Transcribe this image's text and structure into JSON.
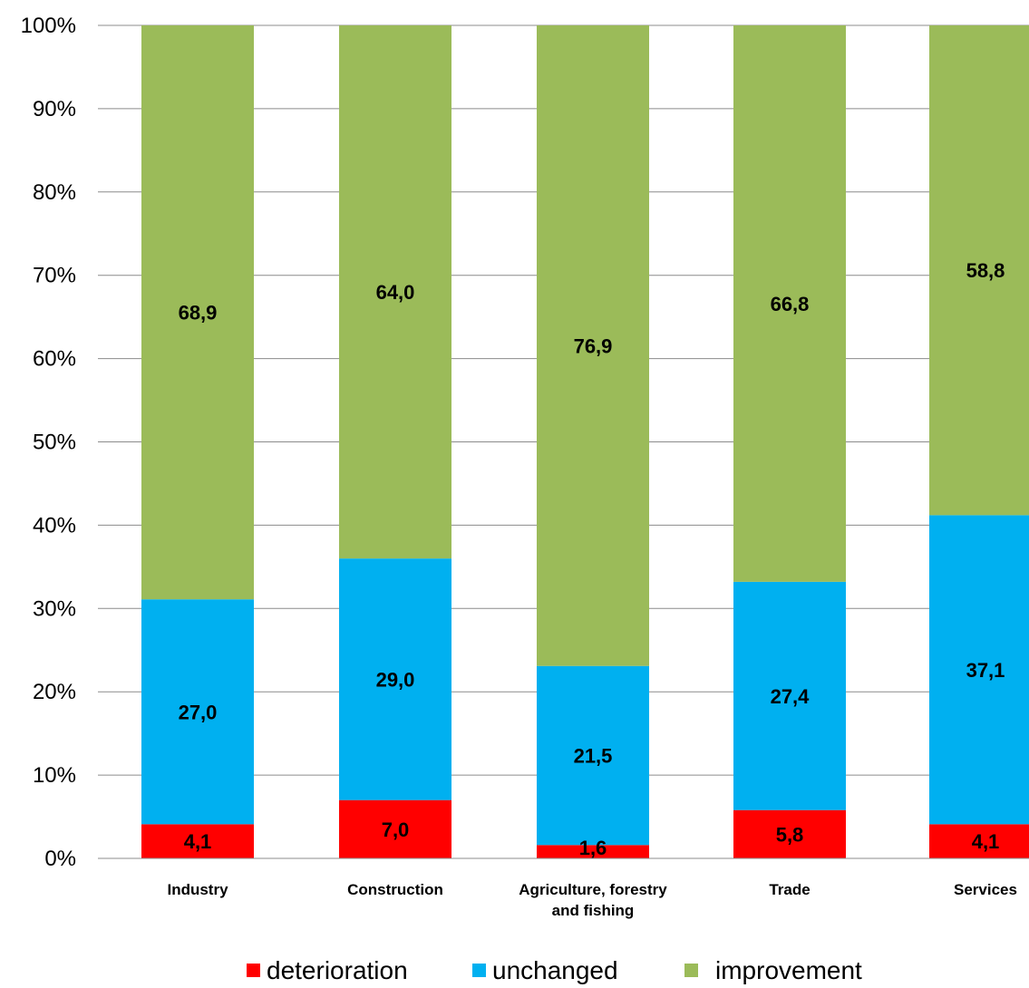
{
  "chart_data": {
    "type": "bar",
    "stacked": true,
    "percent_stacked": true,
    "categories": [
      [
        "Industry"
      ],
      [
        "Construction"
      ],
      [
        "Agriculture, forestry",
        "and fishing"
      ],
      [
        "Trade"
      ],
      [
        "Services"
      ]
    ],
    "series": [
      {
        "name": "deterioration",
        "color": "#ff0000",
        "values": [
          4.1,
          7.0,
          1.6,
          5.8,
          4.1
        ],
        "labels": [
          "4,1",
          "7,0",
          "1,6",
          "5,8",
          "4,1"
        ]
      },
      {
        "name": "unchanged",
        "color": "#00b0f0",
        "values": [
          27.0,
          29.0,
          21.5,
          27.4,
          37.1
        ],
        "labels": [
          "27,0",
          "29,0",
          "21,5",
          "27,4",
          "37,1"
        ]
      },
      {
        "name": "improvement",
        "color": "#9bbb59",
        "values": [
          68.9,
          64.0,
          76.9,
          66.8,
          58.8
        ],
        "labels": [
          "68,9",
          "64,0",
          "76,9",
          "66,8",
          "58,8"
        ]
      }
    ],
    "ylim": [
      0,
      100
    ],
    "yticks": [
      "0%",
      "10%",
      "20%",
      "30%",
      "40%",
      "50%",
      "60%",
      "70%",
      "80%",
      "90%",
      "100%"
    ],
    "grid": true,
    "legend_position": "bottom"
  }
}
